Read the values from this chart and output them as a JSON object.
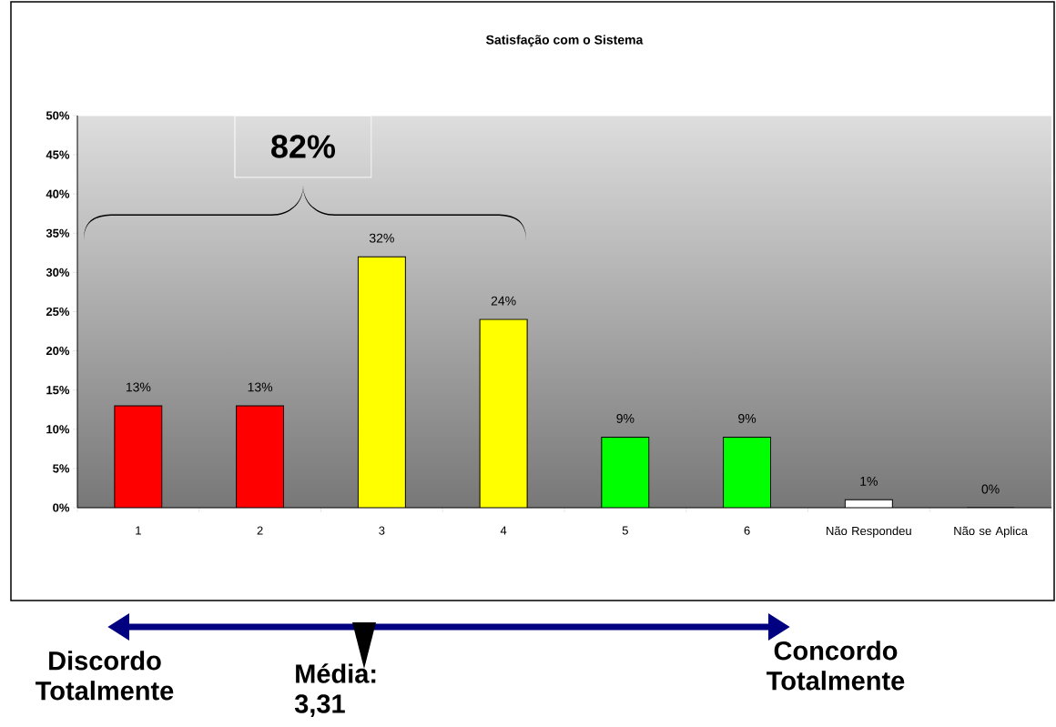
{
  "chart_data": {
    "type": "bar",
    "title": "Satisfação com o Sistema",
    "categories": [
      "1",
      "2",
      "3",
      "4",
      "5",
      "6",
      "Não Respondeu",
      "Não se Aplica"
    ],
    "values": [
      13,
      13,
      32,
      24,
      9,
      9,
      1,
      0
    ],
    "colors": [
      "#ff0000",
      "#ff0000",
      "#ffff00",
      "#ffff00",
      "#00ff00",
      "#00ff00",
      "#ffffff",
      "#ffffff"
    ],
    "value_labels": [
      "13%",
      "13%",
      "32%",
      "24%",
      "9%",
      "9%",
      "1%",
      "0%"
    ],
    "ylim": [
      0,
      50
    ],
    "yticks": [
      {
        "value": 0,
        "label": "0%"
      },
      {
        "value": 5,
        "label": "5%"
      },
      {
        "value": 10,
        "label": "10%"
      },
      {
        "value": 15,
        "label": "15%"
      },
      {
        "value": 20,
        "label": "20%"
      },
      {
        "value": 25,
        "label": "25%"
      },
      {
        "value": 30,
        "label": "30%"
      },
      {
        "value": 35,
        "label": "35%"
      },
      {
        "value": 40,
        "label": "40%"
      },
      {
        "value": 45,
        "label": "45%"
      },
      {
        "value": 50,
        "label": "50%"
      }
    ],
    "annotations": [
      "82%",
      "Discordo Totalmente",
      "Média: 3,31",
      "Concordo Totalmente"
    ]
  }
}
